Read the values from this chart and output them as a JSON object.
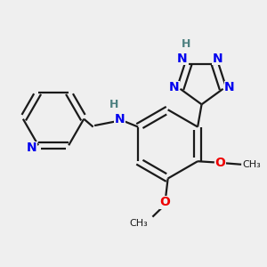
{
  "bg_color": "#efefef",
  "bond_color": "#1a1a1a",
  "N_color": "#0000ee",
  "O_color": "#ee0000",
  "H_color": "#4d8080",
  "lw": 1.6,
  "figsize": [
    3.0,
    3.0
  ],
  "dpi": 100,
  "xlim": [
    0,
    10
  ],
  "ylim": [
    0,
    10
  ]
}
